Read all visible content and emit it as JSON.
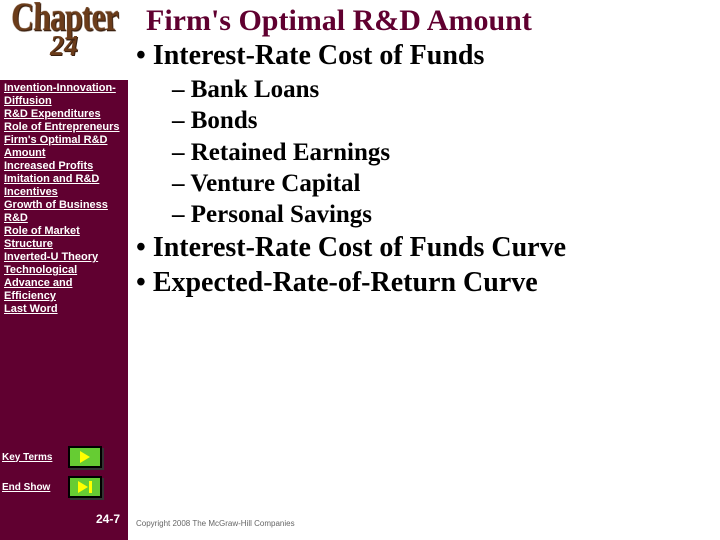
{
  "sidebar": {
    "chapter_word": "Chapter",
    "chapter_number": "24",
    "background_color": "#600030",
    "text_color": "#ffffff",
    "links": [
      "Invention-Innovation-Diffusion",
      "R&D Expenditures",
      "Role of Entrepreneurs",
      "Firm's Optimal R&D Amount",
      "Increased Profits",
      "Imitation and R&D Incentives",
      "Growth of Business R&D",
      "Role of Market Structure",
      "Inverted-U Theory",
      "Technological Advance and Efficiency",
      "Last Word"
    ],
    "buttons": [
      {
        "label": "Key Terms",
        "icon": "play"
      },
      {
        "label": "End Show",
        "icon": "skip"
      }
    ],
    "button_bg": "#66cc33",
    "button_arrow_color": "#ffff00",
    "page_number": "24-7"
  },
  "main": {
    "title": "Firm's Optimal R&D Amount",
    "title_color": "#600030",
    "title_fontsize": 30,
    "level1_fontsize": 28,
    "level2_fontsize": 25,
    "bullets_l1_a": "Interest-Rate Cost of Funds",
    "bullets_l2": [
      "Bank Loans",
      "Bonds",
      "Retained Earnings",
      "Venture Capital",
      "Personal Savings"
    ],
    "bullets_l1_b": "Interest-Rate Cost of Funds Curve",
    "bullets_l1_c": "Expected-Rate-of-Return Curve"
  },
  "copyright": "Copyright 2008 The McGraw-Hill Companies"
}
